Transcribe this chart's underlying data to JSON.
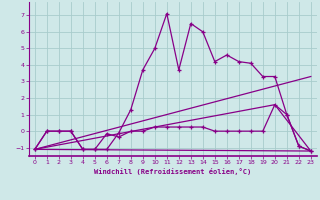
{
  "xlabel": "Windchill (Refroidissement éolien,°C)",
  "background_color": "#cfe8e8",
  "grid_color": "#a8cccc",
  "line_color": "#880088",
  "xlim": [
    -0.5,
    23.5
  ],
  "ylim": [
    -1.5,
    7.8
  ],
  "xticks": [
    0,
    1,
    2,
    3,
    4,
    5,
    6,
    7,
    8,
    9,
    10,
    11,
    12,
    13,
    14,
    15,
    16,
    17,
    18,
    19,
    20,
    21,
    22,
    23
  ],
  "yticks": [
    -1,
    0,
    1,
    2,
    3,
    4,
    5,
    6,
    7
  ],
  "line1_x": [
    0,
    1,
    2,
    3,
    4,
    5,
    6,
    7,
    8,
    9,
    10,
    11,
    12,
    13,
    14,
    15,
    16,
    17,
    18,
    19,
    20,
    21,
    22,
    23
  ],
  "line1_y": [
    -1.1,
    0.0,
    0.0,
    0.0,
    -1.1,
    -1.1,
    -1.1,
    -0.1,
    1.3,
    3.7,
    5.0,
    7.1,
    3.7,
    6.5,
    6.0,
    4.2,
    4.6,
    4.2,
    4.1,
    3.3,
    3.3,
    1.0,
    -0.9,
    -1.2
  ],
  "line2_x": [
    0,
    1,
    2,
    3,
    4,
    5,
    6,
    7,
    8,
    9,
    10,
    11,
    12,
    13,
    14,
    15,
    16,
    17,
    18,
    19,
    20,
    21,
    22,
    23
  ],
  "line2_y": [
    -1.1,
    0.0,
    0.0,
    0.0,
    -1.1,
    -1.1,
    -0.15,
    -0.35,
    0.0,
    0.0,
    0.25,
    0.25,
    0.25,
    0.25,
    0.25,
    0.0,
    0.0,
    0.0,
    0.0,
    0.0,
    1.6,
    1.0,
    -0.9,
    -1.2
  ],
  "line3_x": [
    0,
    23
  ],
  "line3_y": [
    -1.1,
    3.3
  ],
  "line4_x": [
    0,
    20,
    23
  ],
  "line4_y": [
    -1.1,
    1.6,
    -1.2
  ],
  "line5_x": [
    0,
    23
  ],
  "line5_y": [
    -1.1,
    -1.2
  ]
}
